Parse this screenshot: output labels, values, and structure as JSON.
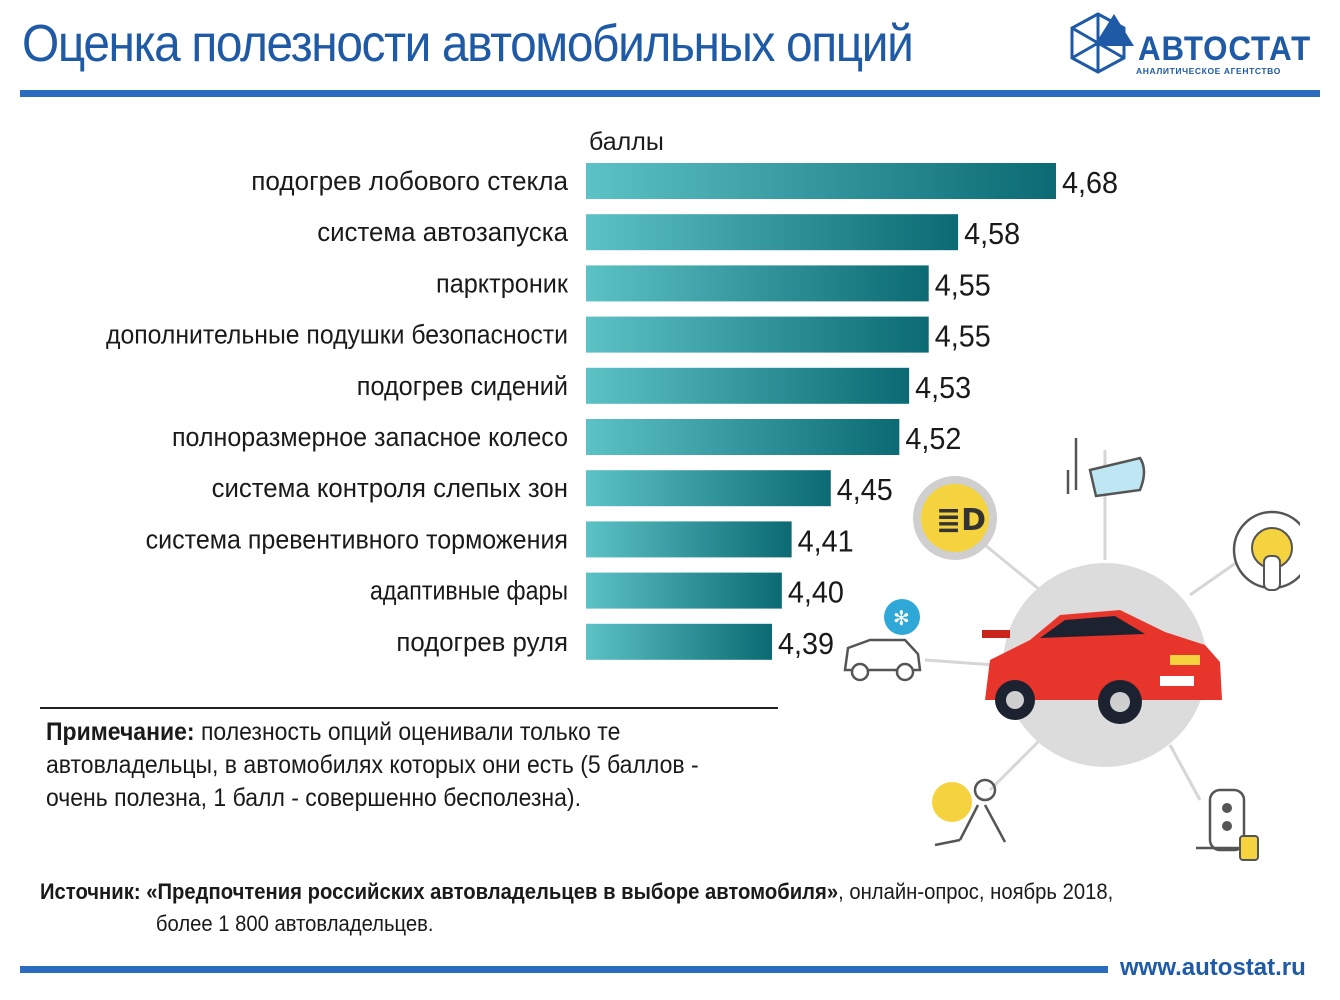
{
  "header": {
    "title": "Оценка полезности автомобильных опций",
    "logo_name": "АВТОСТАТ",
    "logo_tagline": "АНАЛИТИЧЕСКОЕ АГЕНТСТВО"
  },
  "chart_data": {
    "type": "bar",
    "orientation": "horizontal",
    "title": "Оценка полезности автомобильных опций",
    "unit_label": "баллы",
    "categories": [
      "подогрев лобового стекла",
      "система автозапуска",
      "парктроник",
      "дополнительные подушки безопасности",
      "подогрев сидений",
      "полноразмерное запасное колесо",
      "система контроля слепых зон",
      "система превентивного торможения",
      "адаптивные фары",
      "подогрев руля"
    ],
    "values": [
      4.68,
      4.58,
      4.55,
      4.55,
      4.53,
      4.52,
      4.45,
      4.41,
      4.4,
      4.39
    ],
    "value_labels": [
      "4,68",
      "4,58",
      "4,55",
      "4,55",
      "4,53",
      "4,52",
      "4,45",
      "4,41",
      "4,40",
      "4,39"
    ],
    "xlim": [
      4.2,
      4.68
    ],
    "grid": false,
    "legend": "none",
    "colors": {
      "light": "#5cc2c6",
      "dark": "#0b6a73"
    }
  },
  "note": {
    "label": "Примечание:",
    "text": " полезность опций оценивали только те автовладельцы, в автомобилях которых они есть (5 баллов - очень полезна, 1 балл - совершенно бесполезна)."
  },
  "source": {
    "label": "Источник:",
    "title": " «Предпочтения российских автовладельцев в выборе автомобиля»",
    "rest": ", онлайн-опрос, ноябрь 2018,",
    "line2": "более 1 800 автовладельцев."
  },
  "footer": {
    "url": "www.autostat.ru"
  },
  "illustration": {
    "icons": [
      "heated-mirror-icon",
      "fog-light-icon",
      "start-button-icon",
      "remote-start-icon",
      "airbag-icon",
      "car-key-icon"
    ],
    "colors": {
      "car": "#e8352b",
      "accent": "#f5d33f",
      "ice": "#2fa8d8"
    }
  }
}
